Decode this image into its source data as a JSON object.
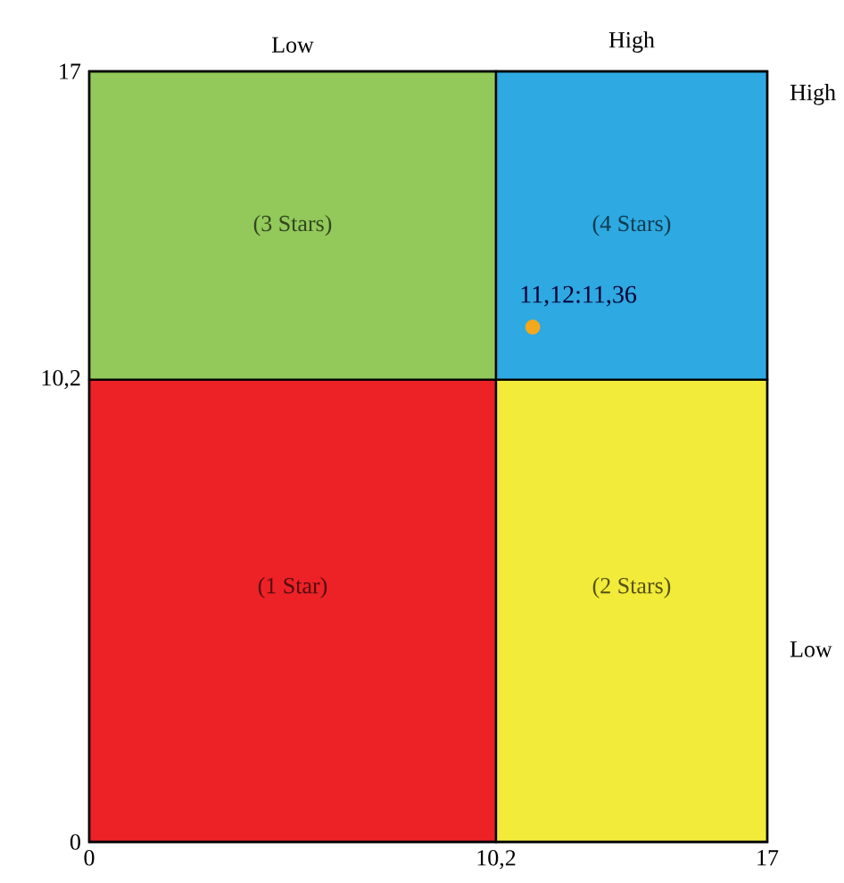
{
  "chart_data": {
    "type": "scatter",
    "xlim": [
      0,
      17
    ],
    "ylim": [
      0,
      17
    ],
    "xticks": [
      0,
      {
        "value": 10.2,
        "label": "10,2"
      },
      17
    ],
    "yticks": [
      0,
      {
        "value": 10.2,
        "label": "10,2"
      },
      17
    ],
    "stacked": true,
    "series": [
      {
        "type": "bar",
        "x": [
          5.1,
          13.6
        ],
        "values": [
          10.2,
          10.2
        ],
        "colors": [
          "#ec2227",
          "#f2eb39"
        ]
      },
      {
        "type": "bar",
        "x": [
          5.1,
          13.6
        ],
        "values": [
          6.8,
          6.8
        ],
        "colors": [
          "#92c95a",
          "#2ea9e1"
        ]
      },
      {
        "x": [
          11.12
        ],
        "values": [
          11.36
        ],
        "color": "#f5a81c"
      }
    ],
    "annotations": [
      {
        "text": "11,12:11,36",
        "x": 11.12,
        "y": 11.36
      },
      "(1 Star)",
      "(2 Stars)",
      "(3 Stars)",
      "(4 Stars)",
      "Low",
      "High",
      "High",
      "Low"
    ]
  }
}
